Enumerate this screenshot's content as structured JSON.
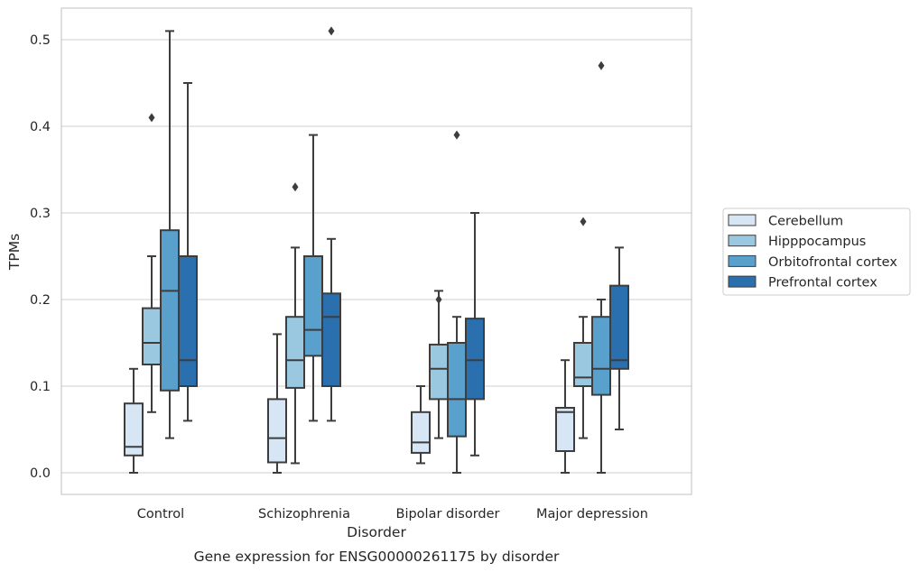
{
  "chart_data": {
    "type": "box",
    "title": "",
    "caption": "Gene expression for ENSG00000261175 by disorder",
    "xlabel": "Disorder",
    "ylabel": "TPMs",
    "ylim": [
      -0.025,
      0.537
    ],
    "yticks": [
      "0.0",
      "0.1",
      "0.2",
      "0.3",
      "0.4",
      "0.5"
    ],
    "grid": "horizontal",
    "legend_position": "right",
    "categories": [
      "Control",
      "Schizophrenia",
      "Bipolar disorder",
      "Major depression"
    ],
    "series": [
      {
        "name": "Cerebellum",
        "color": "#d6e6f4",
        "boxes": [
          {
            "whisker_low": 0.0,
            "q1": 0.02,
            "median": 0.03,
            "q3": 0.08,
            "whisker_high": 0.12,
            "outliers": []
          },
          {
            "whisker_low": 0.0,
            "q1": 0.012,
            "median": 0.04,
            "q3": 0.085,
            "whisker_high": 0.16,
            "outliers": []
          },
          {
            "whisker_low": 0.011,
            "q1": 0.023,
            "median": 0.035,
            "q3": 0.07,
            "whisker_high": 0.1,
            "outliers": []
          },
          {
            "whisker_low": 0.0,
            "q1": 0.025,
            "median": 0.07,
            "q3": 0.075,
            "whisker_high": 0.13,
            "outliers": []
          }
        ]
      },
      {
        "name": "Hipppocampus",
        "color": "#9ac8e0",
        "boxes": [
          {
            "whisker_low": 0.07,
            "q1": 0.125,
            "median": 0.15,
            "q3": 0.19,
            "whisker_high": 0.25,
            "outliers": [
              0.41
            ]
          },
          {
            "whisker_low": 0.011,
            "q1": 0.098,
            "median": 0.13,
            "q3": 0.18,
            "whisker_high": 0.26,
            "outliers": [
              0.33
            ]
          },
          {
            "whisker_low": 0.04,
            "q1": 0.085,
            "median": 0.12,
            "q3": 0.148,
            "whisker_high": 0.21,
            "outliers": [
              0.2
            ]
          },
          {
            "whisker_low": 0.04,
            "q1": 0.1,
            "median": 0.11,
            "q3": 0.15,
            "whisker_high": 0.18,
            "outliers": [
              0.29
            ]
          }
        ]
      },
      {
        "name": "Orbitofrontal cortex",
        "color": "#5aa0cd",
        "boxes": [
          {
            "whisker_low": 0.04,
            "q1": 0.095,
            "median": 0.21,
            "q3": 0.28,
            "whisker_high": 0.51,
            "outliers": []
          },
          {
            "whisker_low": 0.06,
            "q1": 0.135,
            "median": 0.165,
            "q3": 0.25,
            "whisker_high": 0.39,
            "outliers": []
          },
          {
            "whisker_low": 0.0,
            "q1": 0.042,
            "median": 0.085,
            "q3": 0.15,
            "whisker_high": 0.18,
            "outliers": [
              0.39
            ]
          },
          {
            "whisker_low": 0.0,
            "q1": 0.09,
            "median": 0.12,
            "q3": 0.18,
            "whisker_high": 0.2,
            "outliers": [
              0.47
            ]
          }
        ]
      },
      {
        "name": "Prefrontal cortex",
        "color": "#2a6fae",
        "boxes": [
          {
            "whisker_low": 0.06,
            "q1": 0.1,
            "median": 0.13,
            "q3": 0.25,
            "whisker_high": 0.45,
            "outliers": []
          },
          {
            "whisker_low": 0.06,
            "q1": 0.1,
            "median": 0.18,
            "q3": 0.207,
            "whisker_high": 0.27,
            "outliers": [
              0.51
            ]
          },
          {
            "whisker_low": 0.02,
            "q1": 0.085,
            "median": 0.13,
            "q3": 0.178,
            "whisker_high": 0.3,
            "outliers": []
          },
          {
            "whisker_low": 0.05,
            "q1": 0.12,
            "median": 0.13,
            "q3": 0.216,
            "whisker_high": 0.26,
            "outliers": []
          }
        ]
      }
    ]
  }
}
